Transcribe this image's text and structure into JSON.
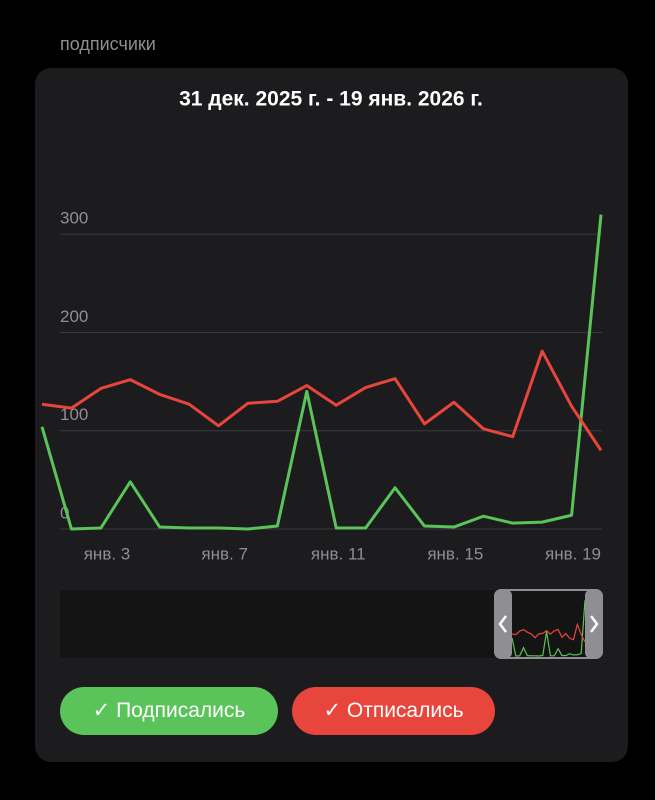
{
  "header": {
    "title": "подписчики"
  },
  "chart_data": {
    "type": "line",
    "title": "31 дек. 2025 г. - 19 янв. 2026 г.",
    "categories": [
      null,
      null,
      null,
      "янв. 3",
      null,
      null,
      null,
      "янв. 7",
      null,
      null,
      null,
      "янв. 11",
      null,
      null,
      null,
      "янв. 15",
      null,
      null,
      null,
      "янв. 19"
    ],
    "series": [
      {
        "name": "Подписались",
        "color": "#5ac35a",
        "values": [
          104,
          0,
          1,
          48,
          2,
          1,
          1,
          0,
          3,
          140,
          1,
          1,
          42,
          3,
          2,
          13,
          6,
          7,
          14,
          320
        ]
      },
      {
        "name": "Отписались",
        "color": "#e8453c",
        "values": [
          127,
          123,
          143,
          152,
          137,
          127,
          105,
          128,
          130,
          146,
          126,
          144,
          153,
          107,
          129,
          102,
          94,
          181,
          125,
          80
        ]
      }
    ],
    "ylim": [
      0,
      345
    ],
    "yticks": [
      0,
      100,
      200,
      300
    ],
    "grid": true
  }
}
